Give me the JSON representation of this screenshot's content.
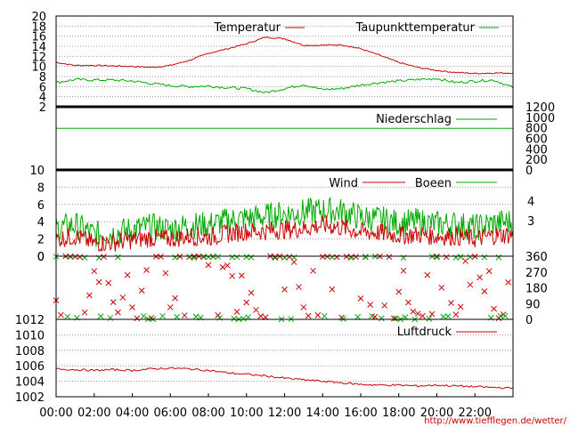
{
  "footer_url": "http://www.tiefflegen.de/wetter/",
  "time_axis": [
    "00:00",
    "02:00",
    "04:00",
    "06:00",
    "08:00",
    "10:00",
    "12:00",
    "14:00",
    "16:00",
    "18:00",
    "20:00",
    "22:00"
  ],
  "colors": {
    "red": "#cc0000",
    "green": "#00aa00"
  },
  "chart_data": [
    {
      "type": "line",
      "legend": [
        "Temperatur",
        "Taupunkttemperatur"
      ],
      "ylim": [
        2,
        20
      ],
      "yticks": [
        2,
        4,
        6,
        8,
        10,
        12,
        14,
        16,
        18,
        20
      ],
      "x_hours": [
        0,
        1,
        2,
        3,
        4,
        5,
        6,
        7,
        8,
        9,
        10,
        11,
        12,
        13,
        14,
        15,
        16,
        17,
        18,
        19,
        20,
        21,
        22,
        23,
        24
      ],
      "series": [
        {
          "name": "Temperatur",
          "color": "#cc0000",
          "values": [
            10.8,
            10.2,
            10.2,
            10.1,
            10.0,
            9.8,
            10.2,
            11.2,
            12.6,
            13.5,
            14.5,
            15.8,
            15.5,
            14.2,
            14.2,
            14.3,
            13.5,
            12.2,
            10.8,
            9.8,
            9.2,
            8.8,
            8.6,
            8.7,
            8.7
          ]
        },
        {
          "name": "Taupunkttemperatur",
          "color": "#00aa00",
          "values": [
            6.8,
            7.4,
            7.3,
            7.3,
            7.1,
            6.6,
            6.2,
            6.0,
            6.1,
            5.8,
            5.6,
            4.8,
            5.6,
            6.4,
            5.4,
            5.6,
            6.3,
            6.8,
            7.1,
            7.4,
            7.6,
            6.8,
            7.1,
            7.3,
            5.8
          ]
        }
      ]
    },
    {
      "type": "line",
      "legend": [
        "Niederschlag"
      ],
      "ylim": [
        0,
        1200
      ],
      "yticks": [
        0,
        200,
        400,
        600,
        800,
        1000,
        1200
      ],
      "series": [
        {
          "name": "Niederschlag",
          "color": "#00aa00",
          "values": [
            790,
            790
          ]
        }
      ]
    },
    {
      "type": "line",
      "legend": [
        "Wind",
        "Boeen"
      ],
      "ylim": [
        0,
        10
      ],
      "yticks": [
        0,
        2,
        4,
        6,
        8,
        10
      ],
      "right_labels": [
        "4",
        "3"
      ],
      "series": [
        {
          "name": "Wind",
          "color": "#cc0000",
          "values": [
            2.0,
            2.3,
            1.5,
            1.6,
            1.9,
            2.1,
            2.0,
            2.3,
            2.2,
            2.6,
            2.9,
            2.9,
            3.1,
            3.2,
            3.6,
            3.3,
            2.8,
            2.7,
            2.4,
            2.5,
            2.3,
            2.3,
            2.0,
            2.4,
            2.5
          ]
        },
        {
          "name": "Boeen",
          "color": "#00aa00",
          "values": [
            3.2,
            3.6,
            2.5,
            2.7,
            3.1,
            3.4,
            3.1,
            3.6,
            3.6,
            4.1,
            4.4,
            4.6,
            4.9,
            5.1,
            5.3,
            5.2,
            4.5,
            4.3,
            3.8,
            4.0,
            3.7,
            3.7,
            3.3,
            3.8,
            4.0
          ]
        }
      ]
    },
    {
      "type": "scatter",
      "ylim": [
        0,
        360
      ],
      "yticks": [
        0,
        90,
        180,
        270,
        360
      ]
    },
    {
      "type": "line",
      "legend": [
        "Luftdruck"
      ],
      "ylim": [
        1002,
        1012
      ],
      "yticks": [
        1002,
        1004,
        1006,
        1008,
        1010,
        1012
      ],
      "series": [
        {
          "name": "Luftdruck",
          "color": "#cc0000",
          "values": [
            1005.6,
            1005.5,
            1005.4,
            1005.5,
            1005.4,
            1005.6,
            1005.7,
            1005.6,
            1005.4,
            1005.1,
            1004.9,
            1004.7,
            1004.4,
            1004.2,
            1004.0,
            1003.8,
            1003.6,
            1003.5,
            1003.5,
            1003.4,
            1003.5,
            1003.4,
            1003.3,
            1003.2,
            1003.1
          ]
        }
      ]
    }
  ]
}
